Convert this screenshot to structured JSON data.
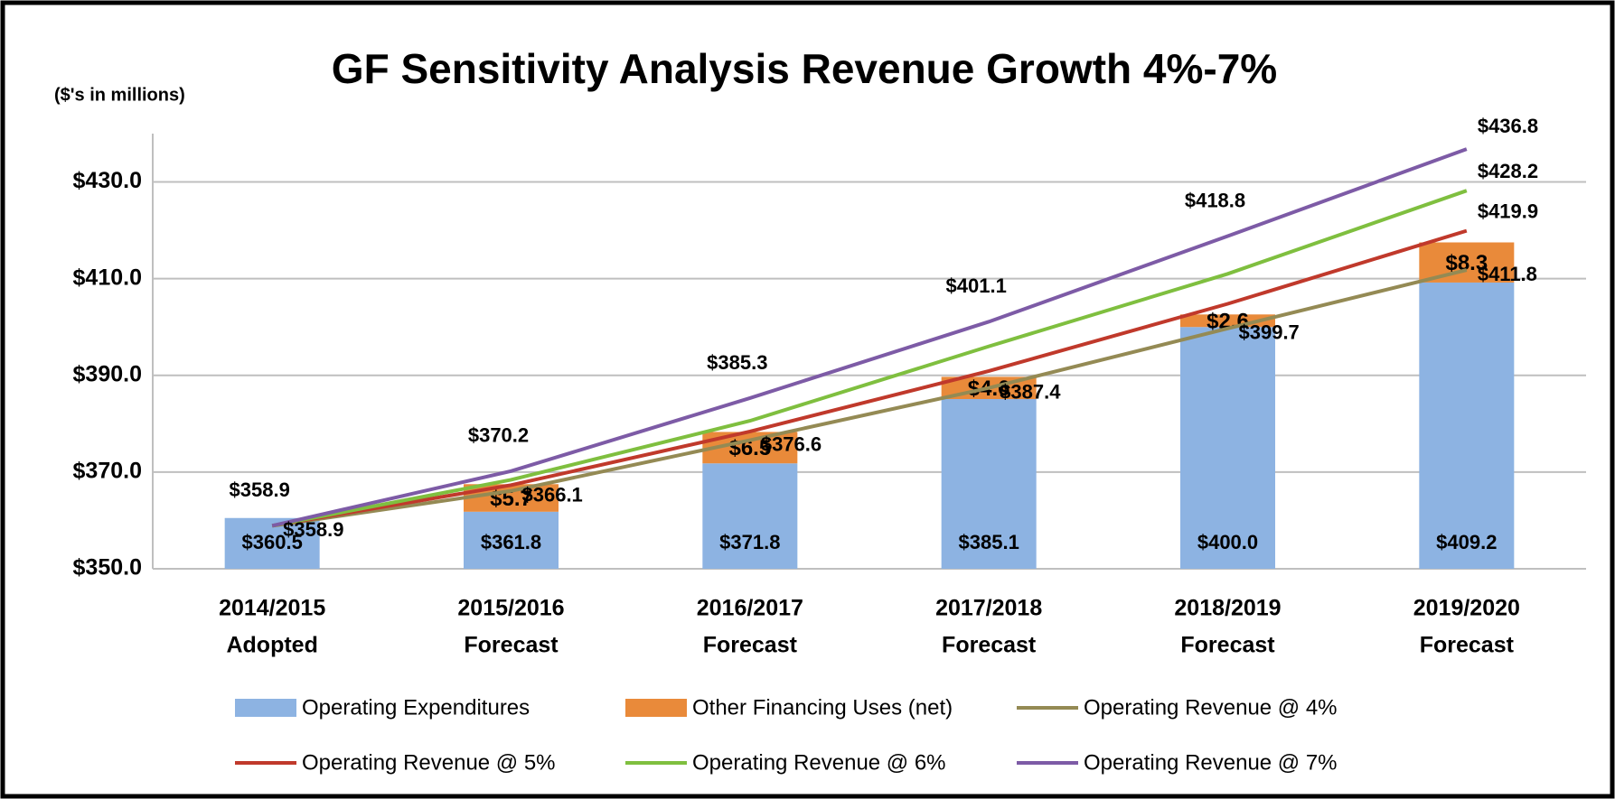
{
  "chart_data": {
    "type": "bar-line",
    "title": "GF Sensitivity Analysis Revenue Growth 4%-7%",
    "subtitle": "($'s in millions)",
    "categories": [
      [
        "2014/2015",
        "Adopted"
      ],
      [
        "2015/2016",
        "Forecast"
      ],
      [
        "2016/2017",
        "Forecast"
      ],
      [
        "2017/2018",
        "Forecast"
      ],
      [
        "2018/2019",
        "Forecast"
      ],
      [
        "2019/2020",
        "Forecast"
      ]
    ],
    "ylim": [
      350,
      440
    ],
    "yticks": [
      {
        "value": 350,
        "label": "$350.0"
      },
      {
        "value": 370,
        "label": "$370.0"
      },
      {
        "value": 390,
        "label": "$390.0"
      },
      {
        "value": 410,
        "label": "$410.0"
      },
      {
        "value": 430,
        "label": "$430.0"
      }
    ],
    "grid": true,
    "legend": "bottom",
    "series": [
      {
        "name": "Operating Expenditures",
        "kind": "bar",
        "color": "#8db3e2",
        "values": [
          360.5,
          361.8,
          371.8,
          385.1,
          400.0,
          409.2
        ],
        "value_labels": [
          "$360.5",
          "$361.8",
          "$371.8",
          "$385.1",
          "$400.0",
          "$409.2"
        ]
      },
      {
        "name": "Other Financing Uses (net)",
        "kind": "bar",
        "color": "#e98a3a",
        "values": [
          null,
          5.7,
          6.5,
          4.6,
          2.6,
          8.3
        ],
        "value_labels": [
          null,
          "$5.7",
          "$6.5",
          "$4.6",
          "$2.6",
          "$8.3"
        ]
      },
      {
        "name": "Operating Revenue @ 4%",
        "kind": "line",
        "color": "#948a54",
        "values": [
          358.9,
          366.1,
          376.6,
          387.4,
          399.7,
          411.8
        ],
        "value_labels": [
          "$358.9",
          "$366.1",
          "$376.6",
          "$387.4",
          "$399.7",
          "$411.8"
        ]
      },
      {
        "name": "Operating Revenue @ 5%",
        "kind": "line",
        "color": "#c0392b",
        "values": [
          358.9,
          367.3,
          378.4,
          390.9,
          404.8,
          419.9
        ],
        "value_labels": [
          null,
          null,
          null,
          null,
          null,
          "$419.9"
        ]
      },
      {
        "name": "Operating Revenue @ 6%",
        "kind": "line",
        "color": "#7fbf3f",
        "values": [
          358.9,
          368.4,
          380.6,
          396.0,
          411.0,
          428.2
        ],
        "value_labels": [
          null,
          null,
          null,
          null,
          null,
          "$428.2"
        ]
      },
      {
        "name": "Operating Revenue @ 7%",
        "kind": "line",
        "color": "#7d5ba6",
        "values": [
          358.9,
          370.2,
          385.3,
          401.1,
          418.8,
          436.8
        ],
        "value_labels": [
          "$358.9",
          "$370.2",
          "$385.3",
          "$401.1",
          "$418.8",
          "$436.8"
        ]
      }
    ]
  }
}
